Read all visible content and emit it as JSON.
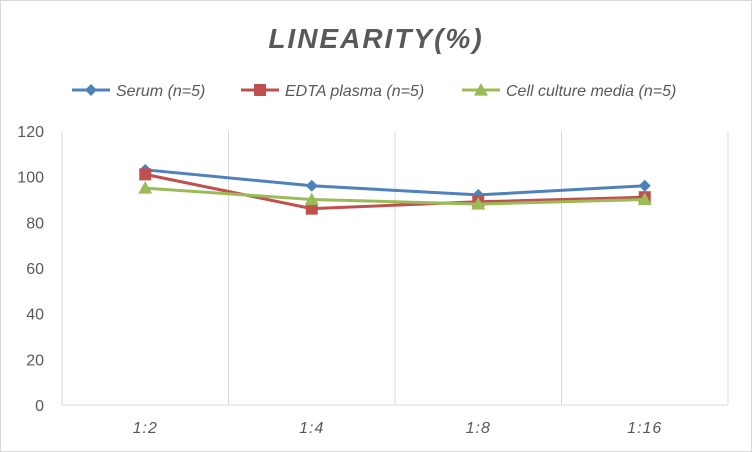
{
  "chart_data": {
    "type": "line",
    "title": "LINEARITY(%)",
    "categories": [
      "1:2",
      "1:4",
      "1:8",
      "1:16"
    ],
    "ylim": [
      0,
      120
    ],
    "yticks": [
      0,
      20,
      40,
      60,
      80,
      100,
      120
    ],
    "grid": "vertical",
    "legend_position": "top",
    "series": [
      {
        "name": "Serum (n=5)",
        "color": "#4f81bd",
        "marker": "diamond",
        "values": [
          103,
          96,
          92,
          96
        ]
      },
      {
        "name": "EDTA plasma (n=5)",
        "color": "#c0504d",
        "marker": "square",
        "values": [
          101,
          86,
          89,
          91
        ]
      },
      {
        "name": "Cell culture media (n=5)",
        "color": "#9bbb59",
        "marker": "triangle",
        "values": [
          95,
          90,
          88,
          90
        ]
      }
    ]
  }
}
